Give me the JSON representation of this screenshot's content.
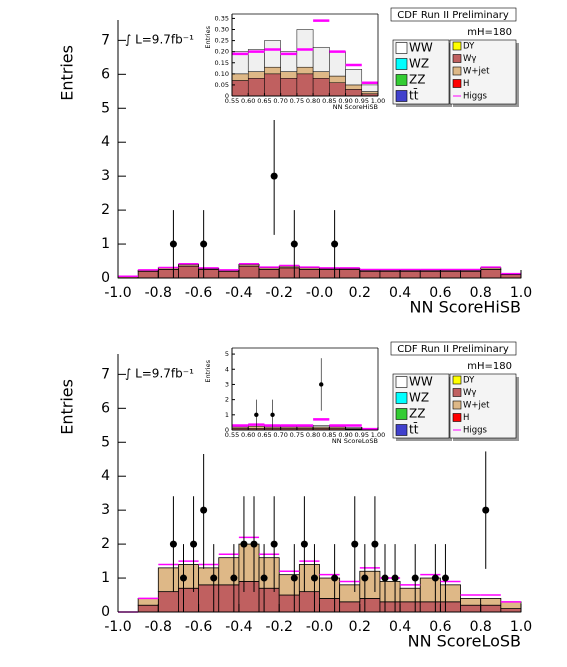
{
  "chart_data": [
    {
      "type": "histogram",
      "title": "CDF Run II Preliminary",
      "mass_label": "mH=180",
      "lumi_label": "∫ L=9.7fb⁻¹",
      "x_label": "NN ScoreHiSB",
      "y_label": "Entries",
      "bins": [
        -1.0,
        -0.9,
        -0.8,
        -0.7,
        -0.6,
        -0.5,
        -0.4,
        -0.3,
        -0.2,
        -0.1,
        0,
        0.1,
        0.2,
        0.3,
        0.4,
        0.5,
        0.6,
        0.7,
        0.8,
        0.9,
        1.0
      ],
      "series": [
        {
          "name": "WW",
          "color": "#ffffff",
          "values": [
            0,
            0,
            0,
            0,
            0,
            0,
            0,
            0,
            0,
            0,
            0,
            0,
            0,
            0,
            0,
            0,
            0,
            0,
            0,
            0
          ]
        },
        {
          "name": "WZ",
          "color": "#00ffff",
          "values": [
            0,
            0,
            0,
            0,
            0,
            0,
            0,
            0,
            0,
            0,
            0,
            0,
            0,
            0,
            0,
            0,
            0,
            0,
            0,
            0
          ]
        },
        {
          "name": "ZZ",
          "color": "#33cc33",
          "values": [
            0,
            0,
            0,
            0,
            0,
            0,
            0,
            0,
            0,
            0,
            0,
            0,
            0,
            0,
            0,
            0,
            0,
            0,
            0,
            0
          ]
        },
        {
          "name": "tt̄",
          "color": "#4040cc",
          "values": [
            0,
            0,
            0,
            0,
            0,
            0,
            0,
            0,
            0,
            0,
            0,
            0,
            0,
            0,
            0,
            0,
            0,
            0,
            0,
            0
          ]
        },
        {
          "name": "DY",
          "color": "#ffff00",
          "values": [
            0,
            0,
            0,
            0,
            0,
            0,
            0,
            0,
            0,
            0,
            0,
            0,
            0,
            0,
            0,
            0,
            0,
            0,
            0,
            0
          ]
        },
        {
          "name": "Wγ",
          "color": "#c06060",
          "values": [
            0.05,
            0.2,
            0.25,
            0.35,
            0.25,
            0.2,
            0.35,
            0.25,
            0.3,
            0.25,
            0.25,
            0.25,
            0.2,
            0.2,
            0.2,
            0.2,
            0.2,
            0.2,
            0.25,
            0.1
          ]
        },
        {
          "name": "W+jet",
          "color": "#deb887",
          "values": [
            0,
            0.03,
            0.05,
            0.05,
            0.03,
            0.03,
            0.05,
            0.05,
            0.05,
            0.05,
            0.03,
            0.03,
            0.03,
            0.03,
            0.03,
            0.03,
            0.03,
            0.03,
            0.05,
            0.02
          ]
        },
        {
          "name": "H",
          "color": "#ff0000",
          "values": [
            0,
            0,
            0,
            0,
            0,
            0,
            0,
            0,
            0,
            0,
            0,
            0,
            0,
            0,
            0,
            0,
            0,
            0,
            0,
            0
          ]
        },
        {
          "name": "Higgs",
          "color": "#ff00ff",
          "style": "line",
          "values": [
            0.05,
            0.24,
            0.31,
            0.42,
            0.3,
            0.24,
            0.42,
            0.32,
            0.37,
            0.32,
            0.3,
            0.3,
            0.25,
            0.25,
            0.25,
            0.25,
            0.25,
            0.25,
            0.32,
            0.13
          ]
        }
      ],
      "points": {
        "x": [
          -0.725,
          -0.575,
          -0.225,
          -0.125,
          0.075
        ],
        "values": [
          1,
          1,
          3,
          1,
          1
        ],
        "errors": [
          1,
          1,
          1.73,
          1,
          1
        ]
      },
      "xlim": [
        -1,
        1
      ],
      "ylim": [
        0,
        7.6
      ],
      "xticks": [
        {
          "value": -1,
          "label": "-1.0"
        },
        -0.8,
        -0.6,
        -0.4,
        -0.2,
        {
          "value": 0,
          "label": "-0.0"
        },
        0.2,
        0.4,
        0.6,
        0.8,
        {
          "value": 1,
          "label": "1.0"
        }
      ],
      "yticks": [
        0,
        1,
        2,
        3,
        4,
        5,
        6,
        7
      ]
    },
    {
      "type": "histogram",
      "x_label": "NN ScoreHiSB",
      "y_label": "Entries",
      "bins": [
        0.55,
        0.6,
        0.65,
        0.7,
        0.75,
        0.8,
        0.85,
        0.9,
        0.95,
        1.0
      ],
      "series": [
        {
          "color": "#c06060",
          "values": [
            0.07,
            0.08,
            0.1,
            0.08,
            0.1,
            0.08,
            0.06,
            0.03,
            0.01
          ]
        },
        {
          "color": "#deb887",
          "values": [
            0.03,
            0.03,
            0.03,
            0.03,
            0.03,
            0.03,
            0.03,
            0.02,
            0.01
          ]
        },
        {
          "color": "#f0f0f0",
          "values": [
            0.1,
            0.1,
            0.12,
            0.09,
            0.17,
            0.11,
            0.11,
            0.07,
            0.03
          ]
        },
        {
          "color": "#ff00ff",
          "style": "line",
          "values": [
            0.19,
            0.2,
            0.21,
            0.19,
            0.21,
            0.34,
            0.2,
            0.14,
            0.06
          ]
        }
      ],
      "xlim": [
        0.55,
        1.0
      ],
      "ylim": [
        0,
        0.37
      ],
      "xticks": [
        0.55,
        {
          "value": 0.6,
          "label": "0.60"
        },
        0.65,
        {
          "value": 0.7,
          "label": "0.70"
        },
        0.75,
        {
          "value": 0.8,
          "label": "0.80"
        },
        0.85,
        {
          "value": 0.9,
          "label": "0.90"
        },
        0.95,
        {
          "value": 1,
          "label": "1.00"
        }
      ],
      "yticks": [
        0,
        0.05,
        {
          "value": 0.1,
          "label": "0.10"
        },
        0.15,
        {
          "value": 0.2,
          "label": "0.20"
        },
        0.25,
        {
          "value": 0.3,
          "label": "0.30"
        },
        0.35
      ]
    },
    {
      "type": "histogram",
      "title": "CDF Run II Preliminary",
      "mass_label": "mH=180",
      "lumi_label": "∫ L=9.7fb⁻¹",
      "x_label": "NN ScoreLoSB",
      "y_label": "Entries",
      "bins": [
        -1.0,
        -0.9,
        -0.8,
        -0.7,
        -0.6,
        -0.5,
        -0.4,
        -0.3,
        -0.2,
        -0.1,
        0,
        0.1,
        0.2,
        0.3,
        0.4,
        0.5,
        0.6,
        0.7,
        0.8,
        0.9,
        1.0
      ],
      "series": [
        {
          "name": "WW",
          "color": "#ffffff",
          "values": [
            0,
            0,
            0,
            0,
            0,
            0,
            0,
            0,
            0,
            0,
            0,
            0,
            0,
            0,
            0,
            0,
            0,
            0,
            0,
            0
          ]
        },
        {
          "name": "WZ",
          "color": "#00ffff",
          "values": [
            0,
            0,
            0,
            0,
            0,
            0,
            0,
            0,
            0,
            0,
            0,
            0,
            0,
            0,
            0,
            0,
            0,
            0,
            0,
            0
          ]
        },
        {
          "name": "ZZ",
          "color": "#33cc33",
          "values": [
            0,
            0,
            0,
            0,
            0,
            0,
            0,
            0,
            0,
            0,
            0,
            0,
            0,
            0,
            0,
            0,
            0,
            0,
            0,
            0
          ]
        },
        {
          "name": "tt̄",
          "color": "#4040cc",
          "values": [
            0,
            0,
            0,
            0,
            0,
            0,
            0,
            0,
            0,
            0,
            0,
            0,
            0,
            0,
            0,
            0,
            0,
            0,
            0,
            0
          ]
        },
        {
          "name": "DY",
          "color": "#ffff00",
          "values": [
            0,
            0,
            0,
            0,
            0,
            0,
            0,
            0,
            0,
            0,
            0,
            0,
            0,
            0,
            0,
            0,
            0,
            0,
            0,
            0
          ]
        },
        {
          "name": "Wγ",
          "color": "#c06060",
          "values": [
            0,
            0.2,
            0.6,
            0.7,
            0.8,
            0.8,
            0.9,
            0.7,
            0.5,
            0.6,
            0.4,
            0.3,
            0.4,
            0.3,
            0.3,
            0.3,
            0.3,
            0.2,
            0.2,
            0.1
          ]
        },
        {
          "name": "W+jet",
          "color": "#deb887",
          "values": [
            0,
            0.2,
            0.7,
            0.7,
            0.5,
            0.8,
            1.1,
            0.9,
            0.6,
            0.8,
            0.6,
            0.5,
            0.8,
            0.6,
            0.4,
            0.7,
            0.5,
            0.2,
            0.2,
            0.2
          ]
        },
        {
          "name": "H",
          "color": "#ff0000",
          "values": [
            0,
            0,
            0,
            0,
            0,
            0,
            0,
            0,
            0,
            0,
            0,
            0,
            0,
            0,
            0,
            0,
            0,
            0,
            0,
            0
          ]
        },
        {
          "name": "Higgs",
          "color": "#ff00ff",
          "style": "line",
          "values": [
            0,
            0.4,
            1.4,
            1.5,
            1.4,
            1.7,
            2.2,
            1.7,
            1.2,
            1.5,
            1.1,
            0.9,
            1.3,
            1.0,
            0.8,
            1.1,
            0.9,
            0.5,
            0.5,
            0.3
          ]
        }
      ],
      "points": {
        "x": [
          -0.725,
          -0.675,
          -0.625,
          -0.575,
          -0.525,
          -0.425,
          -0.375,
          -0.325,
          -0.275,
          -0.225,
          -0.125,
          -0.075,
          -0.025,
          0.075,
          0.175,
          0.225,
          0.275,
          0.325,
          0.375,
          0.475,
          0.575,
          0.625,
          0.825
        ],
        "values": [
          2,
          1,
          2,
          3,
          1,
          1,
          2,
          2,
          1,
          2,
          1,
          2,
          1,
          1,
          2,
          1,
          2,
          1,
          1,
          1,
          1,
          1,
          3
        ],
        "errors": [
          1.41,
          1,
          1.41,
          1.73,
          1,
          1,
          1.41,
          1.41,
          1,
          1.41,
          1,
          1.41,
          1,
          1,
          1.41,
          1,
          1.41,
          1,
          1,
          1,
          1,
          1,
          1.73
        ]
      },
      "xlim": [
        -1,
        1
      ],
      "ylim": [
        0,
        7.6
      ],
      "xticks": [
        {
          "value": -1,
          "label": "-1.0"
        },
        -0.8,
        -0.6,
        -0.4,
        -0.2,
        {
          "value": 0,
          "label": "-0.0"
        },
        0.2,
        0.4,
        0.6,
        0.8,
        {
          "value": 1,
          "label": "1.0"
        }
      ],
      "yticks": [
        0,
        1,
        2,
        3,
        4,
        5,
        6,
        7
      ]
    },
    {
      "type": "histogram",
      "x_label": "NN ScoreLoSB",
      "y_label": "Entries",
      "bins": [
        0.55,
        0.6,
        0.65,
        0.7,
        0.75,
        0.8,
        0.85,
        0.9,
        0.95,
        1.0
      ],
      "series": [
        {
          "color": "#c06060",
          "values": [
            0.1,
            0.1,
            0.1,
            0.1,
            0.1,
            0.1,
            0.1,
            0.05,
            0.02
          ]
        },
        {
          "color": "#deb887",
          "values": [
            0.1,
            0.15,
            0.1,
            0.1,
            0.1,
            0.1,
            0.1,
            0.05,
            0.02
          ]
        },
        {
          "color": "#f0f0f0",
          "values": [
            0.1,
            0.1,
            0.1,
            0.1,
            0.1,
            0.1,
            0.1,
            0.05,
            0.02
          ]
        },
        {
          "color": "#ff00ff",
          "style": "line",
          "values": [
            0.3,
            0.35,
            0.3,
            0.3,
            0.3,
            0.7,
            0.3,
            0.3,
            0.06
          ]
        }
      ],
      "points": {
        "x": [
          0.625,
          0.675,
          0.825
        ],
        "values": [
          1,
          1,
          3
        ],
        "errors": [
          1,
          1,
          1.73
        ]
      },
      "xlim": [
        0.55,
        1.0
      ],
      "ylim": [
        0,
        5.4
      ],
      "xticks": [
        0.55,
        {
          "value": 0.6,
          "label": "0.60"
        },
        0.65,
        {
          "value": 0.7,
          "label": "0.70"
        },
        0.75,
        {
          "value": 0.8,
          "label": "0.80"
        },
        0.85,
        {
          "value": 0.9,
          "label": "0.90"
        },
        0.95,
        {
          "value": 1,
          "label": "1.00"
        }
      ],
      "yticks": [
        0,
        1,
        2,
        3,
        4,
        5
      ]
    }
  ]
}
